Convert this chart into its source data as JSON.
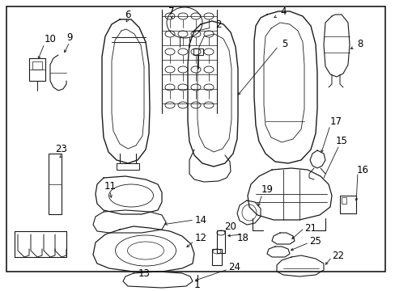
{
  "background_color": "#ffffff",
  "border_color": "#000000",
  "line_color": "#1a1a1a",
  "text_color": "#000000",
  "fig_width": 4.89,
  "fig_height": 3.6,
  "dpi": 100,
  "font_size": 8.5
}
